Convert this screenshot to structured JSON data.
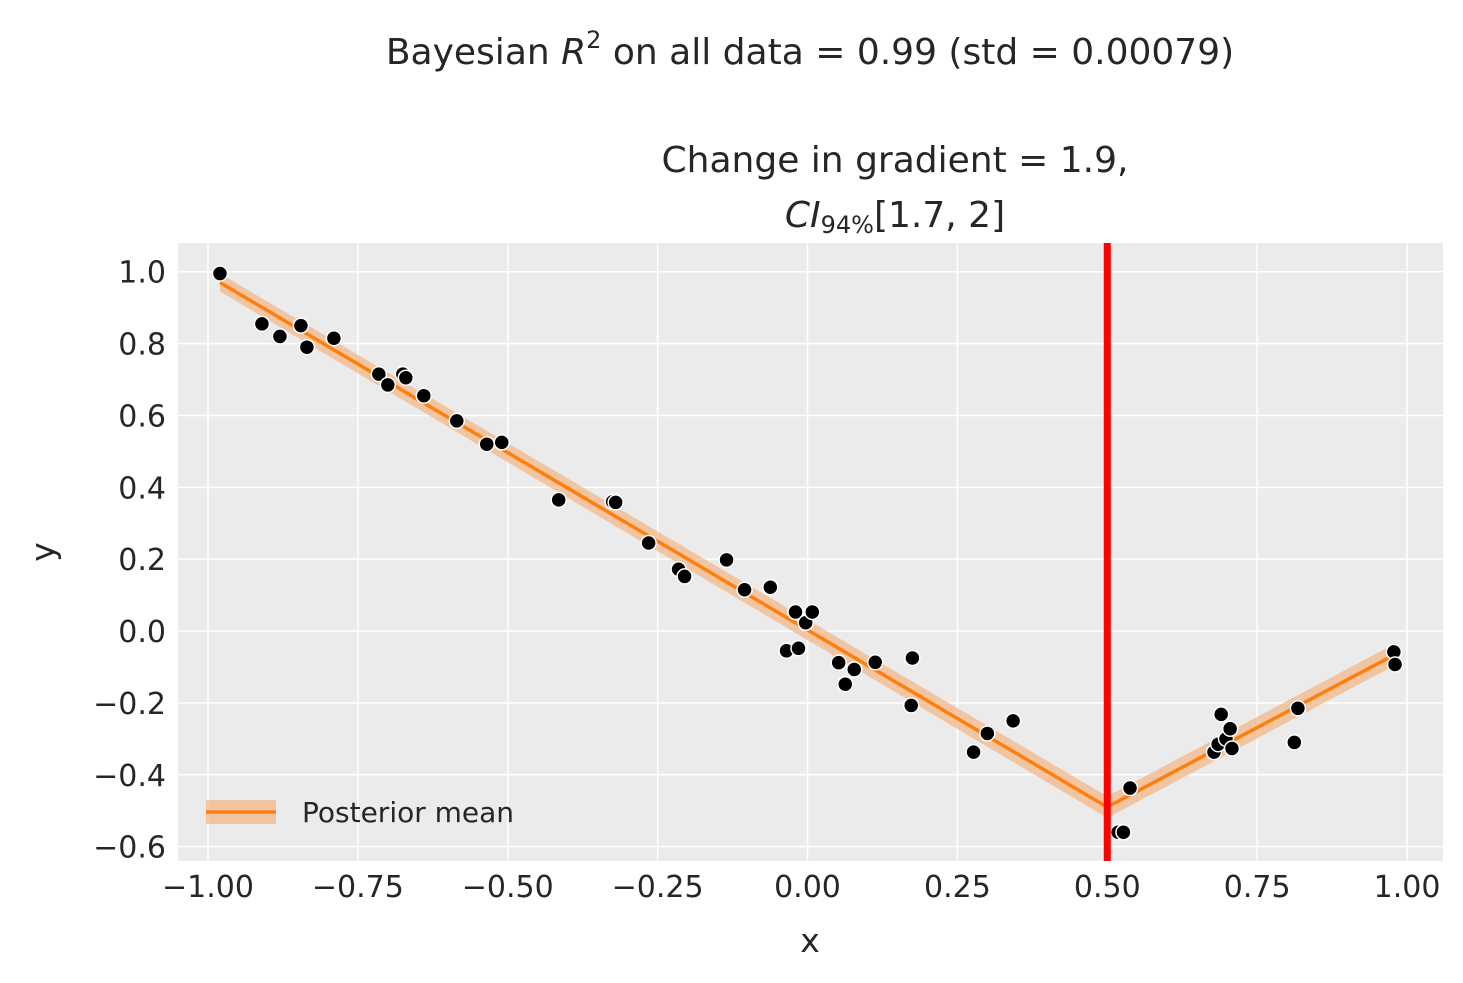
{
  "figure": {
    "suptitle": {
      "prefix": "Bayesian ",
      "symbol": "R",
      "superscript": "2",
      "suffix": " on all data = 0.99 (std = 0.00079)"
    },
    "subtitle_line1": "Change in gradient = 1.9,",
    "subtitle_line2": {
      "symbol": "CI",
      "subscript": "94%",
      "interval": "[1.7, 2]"
    }
  },
  "chart_data": {
    "type": "scatter",
    "xlabel": "x",
    "ylabel": "y",
    "xlim": [
      -1.05,
      1.06
    ],
    "ylim": [
      -0.64,
      1.08
    ],
    "xticks": [
      -1.0,
      -0.75,
      -0.5,
      -0.25,
      0.0,
      0.25,
      0.5,
      0.75,
      1.0
    ],
    "xtick_labels": [
      "−1.00",
      "−0.75",
      "−0.50",
      "−0.25",
      "0.00",
      "0.25",
      "0.50",
      "0.75",
      "1.00"
    ],
    "yticks": [
      1.0,
      0.8,
      0.6,
      0.4,
      0.2,
      0.0,
      -0.2,
      -0.4,
      -0.6
    ],
    "ytick_labels": [
      "1.0",
      "0.8",
      "0.6",
      "0.4",
      "0.2",
      "0.0",
      "−0.2",
      "−0.4",
      "−0.6"
    ],
    "grid": true,
    "background_color": "#ebebeb",
    "changepoint": {
      "x": 0.5,
      "color": "#ff0000"
    },
    "posterior_mean": {
      "name": "Posterior mean",
      "color": "#ff7f0e",
      "band_color": "#f4b88a",
      "x": [
        -0.98,
        0.5,
        0.98
      ],
      "y": [
        0.97,
        -0.49,
        -0.065
      ],
      "band_halfwidth": [
        0.025,
        0.03,
        0.03
      ]
    },
    "legend": {
      "location": "lower-left",
      "entries": [
        "Posterior mean"
      ]
    },
    "points": {
      "color": "#000000",
      "edge_color": "#ffffff",
      "x": [
        -0.98,
        -0.91,
        -0.88,
        -0.845,
        -0.835,
        -0.79,
        -0.715,
        -0.7,
        -0.675,
        -0.67,
        -0.64,
        -0.585,
        -0.535,
        -0.51,
        -0.415,
        -0.325,
        -0.32,
        -0.265,
        -0.215,
        -0.205,
        -0.135,
        -0.105,
        -0.062,
        -0.035,
        -0.02,
        -0.015,
        -0.003,
        0.008,
        0.052,
        0.063,
        0.078,
        0.113,
        0.173,
        0.175,
        0.277,
        0.3,
        0.343,
        0.518,
        0.527,
        0.538,
        0.678,
        0.685,
        0.69,
        0.698,
        0.705,
        0.708,
        0.812,
        0.818,
        0.978,
        0.98
      ],
      "y": [
        0.995,
        0.855,
        0.82,
        0.85,
        0.79,
        0.815,
        0.715,
        0.685,
        0.715,
        0.705,
        0.655,
        0.585,
        0.52,
        0.525,
        0.365,
        0.36,
        0.358,
        0.245,
        0.172,
        0.152,
        0.198,
        0.115,
        0.122,
        -0.055,
        0.053,
        -0.048,
        0.023,
        0.053,
        -0.088,
        -0.148,
        -0.107,
        -0.087,
        -0.207,
        -0.075,
        -0.337,
        -0.285,
        -0.25,
        -0.56,
        -0.56,
        -0.437,
        -0.337,
        -0.315,
        -0.232,
        -0.3,
        -0.272,
        -0.327,
        -0.31,
        -0.215,
        -0.058,
        -0.093
      ]
    }
  }
}
